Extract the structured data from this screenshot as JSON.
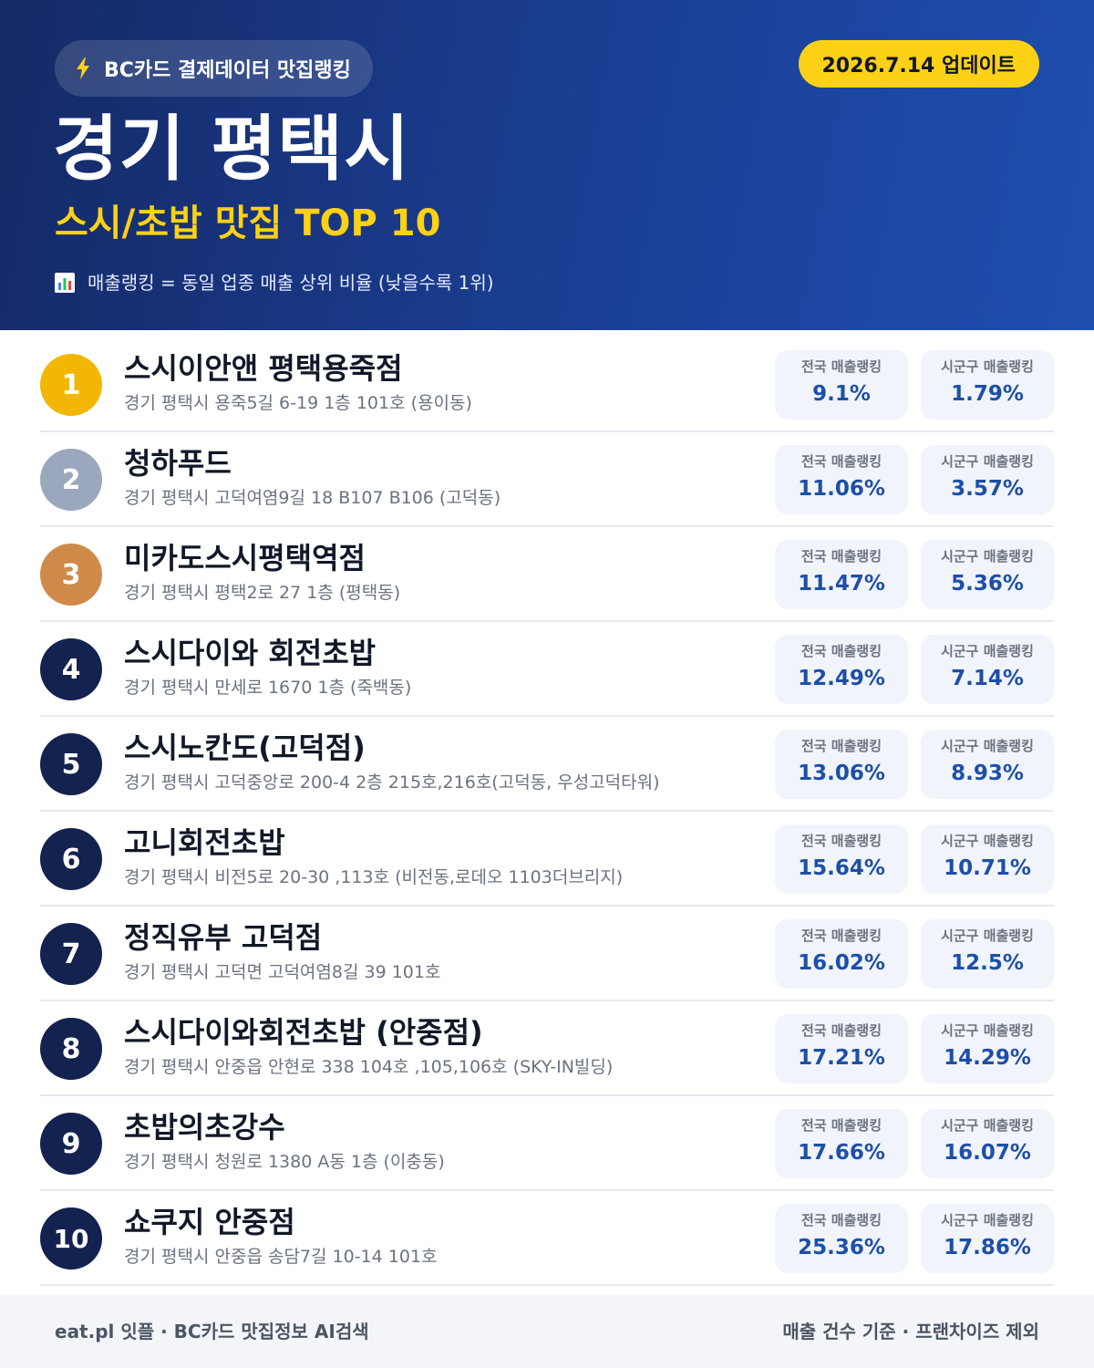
{
  "header": {
    "source_label": "BC카드 결제데이터 맛집랭킹",
    "source_icon": "lightning-bolt-icon",
    "update_label": "2026.7.14 업데이트",
    "region_title": "경기 평택시",
    "category_title": "스시/초밥 맛집 TOP 10",
    "legend_icon": "bar-chart-icon",
    "legend_note": "매출랭킹 = 동일 업종 매출 상위 비율 (낮을수록 1위)"
  },
  "labels": {
    "national": "전국 매출랭킹",
    "local": "시군구 매출랭킹"
  },
  "restaurants": [
    {
      "rank": "1",
      "name": "스시이안앤 평택용죽점",
      "address": "경기 평택시 용죽5길 6-19 1층 101호 (용이동)",
      "national": "9.1%",
      "local": "1.79%"
    },
    {
      "rank": "2",
      "name": "청하푸드",
      "address": "경기 평택시 고덕여염9길 18 B107 B106 (고덕동)",
      "national": "11.06%",
      "local": "3.57%"
    },
    {
      "rank": "3",
      "name": "미카도스시평택역점",
      "address": "경기 평택시 평택2로 27 1층 (평택동)",
      "national": "11.47%",
      "local": "5.36%"
    },
    {
      "rank": "4",
      "name": "스시다이와 회전초밥",
      "address": "경기 평택시 만세로 1670 1층 (죽백동)",
      "national": "12.49%",
      "local": "7.14%"
    },
    {
      "rank": "5",
      "name": "스시노칸도(고덕점)",
      "address": "경기 평택시 고덕중앙로 200-4 2층 215호,216호(고덕동, 우성고덕타워)",
      "national": "13.06%",
      "local": "8.93%"
    },
    {
      "rank": "6",
      "name": "고니회전초밥",
      "address": "경기 평택시 비전5로 20-30 ,113호 (비전동,로데오 1103더브리지)",
      "national": "15.64%",
      "local": "10.71%"
    },
    {
      "rank": "7",
      "name": "정직유부 고덕점",
      "address": "경기 평택시 고덕면 고덕여염8길 39 101호",
      "national": "16.02%",
      "local": "12.5%"
    },
    {
      "rank": "8",
      "name": "스시다이와회전초밥 (안중점)",
      "address": "경기 평택시 안중읍 안현로 338 104호 ,105,106호 (SKY-IN빌딩)",
      "national": "17.21%",
      "local": "14.29%"
    },
    {
      "rank": "9",
      "name": "초밥의초강수",
      "address": "경기 평택시 청원로 1380 A동 1층 (이충동)",
      "national": "17.66%",
      "local": "16.07%"
    },
    {
      "rank": "10",
      "name": "쇼쿠지 안중점",
      "address": "경기 평택시 안중읍 송담7길 10-14 101호",
      "national": "25.36%",
      "local": "17.86%"
    }
  ],
  "footer": {
    "left": "eat.pl 잇플 · BC카드 맛집정보 AI검색",
    "right": "매출 건수 기준 · 프랜차이즈 제외"
  },
  "colors": {
    "header_bg": "#1b3f95",
    "accent_yellow": "#fcd116",
    "gold": "#f2b705",
    "silver": "#9aa7bd",
    "bronze": "#cf8a4a",
    "rank_default": "#13224f",
    "stat_value": "#1d4fa8"
  }
}
